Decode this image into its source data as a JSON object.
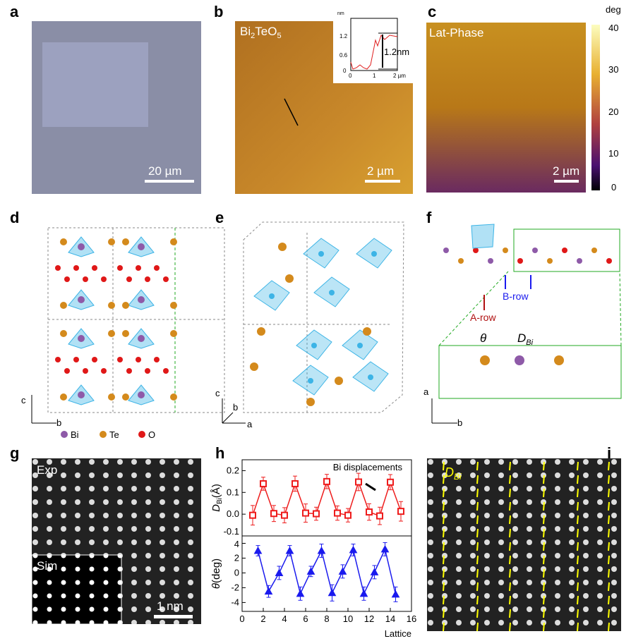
{
  "panels": {
    "a": {
      "label": "a",
      "scalebar": "20 µm"
    },
    "b": {
      "label": "b",
      "title_main": "Bi",
      "title_sub1": "2",
      "title_mid": "TeO",
      "title_sub2": "5",
      "scalebar": "2 µm",
      "inset": {
        "unit": "nm",
        "yticks": [
          "1.2",
          "0.6",
          "0"
        ],
        "xticks": [
          "0",
          "1",
          "2 µm"
        ],
        "annotation": "1.2nm"
      }
    },
    "c": {
      "label": "c",
      "title": "Lat-Phase",
      "scalebar": "2 µm",
      "colorbar": {
        "unit": "deg",
        "ticks": [
          "40",
          "30",
          "20",
          "10",
          "0"
        ]
      }
    },
    "d": {
      "label": "d",
      "axis_c": "c",
      "axis_b": "b",
      "legend": [
        "Bi",
        "Te",
        "O"
      ]
    },
    "e": {
      "label": "e",
      "axis_c": "c",
      "axis_b": "b",
      "axis_a": "a"
    },
    "f": {
      "label": "f",
      "a_row": "A-row",
      "b_row": "B-row",
      "theta": "θ",
      "dbi_main": "D",
      "dbi_sub": "Bi",
      "axis_a": "a",
      "axis_b": "b"
    },
    "g": {
      "label": "g",
      "exp": "Exp",
      "sim": "Sim",
      "scalebar": "1 nm"
    },
    "h": {
      "label": "h"
    },
    "i": {
      "label": "i",
      "dbi_main": "D",
      "dbi_sub": "Bi"
    }
  },
  "colors": {
    "bi": "#8e5aa8",
    "te": "#d48a1c",
    "o": "#e01818",
    "polyhedra": "#3cb4e6",
    "series_dbi": "#ee1c1c",
    "series_theta": "#1a1aee",
    "annotation": "#ffff00"
  },
  "chart_data": {
    "type": "line",
    "xlabel": "Lattice",
    "xlim": [
      0,
      16
    ],
    "xticks": [
      "0",
      "2",
      "4",
      "6",
      "8",
      "10",
      "12",
      "14",
      "16"
    ],
    "annotation": "Bi displacements",
    "subplots": [
      {
        "ylabel_main": "D",
        "ylabel_sub": "Bi",
        "ylabel_unit": "(Å)",
        "ylim": [
          -0.1,
          0.25
        ],
        "yticks": [
          "0.2",
          "0.1",
          "0.0",
          "-0.1"
        ],
        "marker": "square",
        "x": [
          1,
          2,
          3,
          4,
          5,
          6,
          7,
          8,
          9,
          10,
          11,
          12,
          13,
          14,
          15
        ],
        "y": [
          -0.005,
          0.14,
          0.003,
          -0.005,
          0.14,
          0.005,
          0.002,
          0.15,
          0.005,
          -0.005,
          0.148,
          0.01,
          -0.008,
          0.147,
          0.013
        ],
        "err": [
          0.045,
          0.03,
          0.037,
          0.035,
          0.035,
          0.042,
          0.03,
          0.033,
          0.033,
          0.031,
          0.04,
          0.038,
          0.04,
          0.035,
          0.045
        ]
      },
      {
        "ylabel_main": "θ",
        "ylabel_unit": "(deg)",
        "ylim": [
          -5.2,
          5
        ],
        "yticks": [
          "4",
          "2",
          "0",
          "-2",
          "-4"
        ],
        "marker": "triangle",
        "x": [
          1.5,
          2.5,
          3.5,
          4.5,
          5.5,
          6.5,
          7.5,
          8.5,
          9.5,
          10.5,
          11.5,
          12.5,
          13.5,
          14.5
        ],
        "y": [
          3,
          -2.5,
          0,
          3,
          -2.8,
          0.2,
          3,
          -2.7,
          0.2,
          3.1,
          -2.8,
          0.1,
          3.2,
          -2.9
        ],
        "err": [
          0.7,
          0.8,
          0.9,
          0.7,
          0.9,
          0.7,
          0.9,
          1.1,
          0.9,
          0.8,
          0.9,
          0.9,
          0.9,
          1.0
        ]
      }
    ]
  }
}
